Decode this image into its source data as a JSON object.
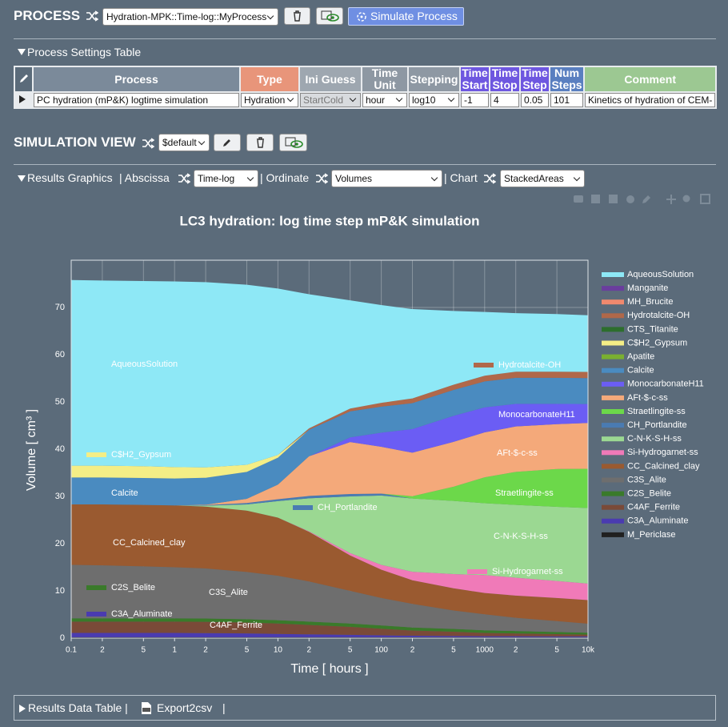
{
  "header": {
    "title": "PROCESS",
    "process_select": "Hydration-MPK::Time-log::MyProcess",
    "simulate_button": "Simulate Process"
  },
  "settings_table": {
    "title": "Process Settings Table",
    "columns": [
      "Process",
      "Type",
      "Ini Guess",
      "Time Unit",
      "Stepping",
      "Time Start",
      "Time Stop",
      "Time Step",
      "Num Steps",
      "Comment"
    ],
    "rows": [
      [
        "PC hydration (mP&K) logtime simulation",
        "Hydration",
        "StartCold",
        "hour",
        "log10",
        "-1",
        "4",
        "0.05",
        "101",
        "Kinetics of hydration of CEM-"
      ]
    ]
  },
  "view": {
    "title": "SIMULATION VIEW",
    "view_select": "$default",
    "results_graphics": "Results Graphics",
    "abscissa_label": "| Abscissa",
    "abscissa": "Time-log",
    "ordinate_label": "| Ordinate",
    "ordinate": "Volumes",
    "chart_label": "| Chart",
    "chart": "StackedAreas"
  },
  "chart_data": {
    "type": "stacked_area",
    "title": "LC3 hydration: log time step mP&K simulation",
    "x_label": "Time [ hours ]",
    "y_label": "Volume [ cm³ ]",
    "xscale": "log",
    "grid": true,
    "x": [
      0.1,
      0.2,
      0.5,
      1,
      2,
      5,
      10,
      20,
      50,
      100,
      200,
      500,
      1000,
      2000,
      5000,
      10000
    ],
    "xlim": [
      0.1,
      10000
    ],
    "xticks": [
      0.1,
      {
        "value": 0.2,
        "label": "2"
      },
      {
        "value": 0.5,
        "label": "5"
      },
      1,
      2,
      5,
      10,
      {
        "value": 20,
        "label": "2"
      },
      {
        "value": 50,
        "label": "5"
      },
      100,
      {
        "value": 200,
        "label": "2"
      },
      {
        "value": 500,
        "label": "5"
      },
      1000,
      {
        "value": 2000,
        "label": "2"
      },
      {
        "value": 5000,
        "label": "5"
      },
      {
        "value": 10000,
        "label": "10k"
      }
    ],
    "ylim": [
      0,
      80
    ],
    "yticks": [
      0,
      10,
      20,
      30,
      40,
      50,
      60,
      70
    ],
    "series": [
      {
        "name": "AqueousSolution",
        "color": "#8ee8f6",
        "values": [
          39.3,
          39.2,
          39.2,
          39.3,
          39.2,
          38.1,
          35.2,
          28.4,
          22.9,
          20.7,
          18.9,
          15.6,
          13.5,
          12.4,
          12.2,
          12.0
        ]
      },
      {
        "name": "Manganite",
        "color": "#6a3d9e",
        "values": [
          0,
          0,
          0,
          0,
          0,
          0,
          0,
          0,
          0,
          0,
          0,
          0,
          0,
          0,
          0,
          0
        ]
      },
      {
        "name": "MH_Brucite",
        "color": "#f0896e",
        "values": [
          0,
          0,
          0,
          0,
          0,
          0,
          0,
          0,
          0,
          0,
          0,
          0,
          0,
          0,
          0,
          0
        ]
      },
      {
        "name": "Hydrotalcite-OH",
        "color": "#b0684a",
        "values": [
          0,
          0,
          0,
          0,
          0,
          0,
          0,
          0.3,
          0.6,
          0.8,
          1.0,
          1.1,
          1.2,
          1.3,
          1.3,
          1.3
        ]
      },
      {
        "name": "CTS_Titanite",
        "color": "#2d6e2d",
        "values": [
          0,
          0,
          0,
          0,
          0,
          0,
          0,
          0,
          0,
          0,
          0,
          0,
          0,
          0,
          0,
          0
        ]
      },
      {
        "name": "C$H2_Gypsum",
        "color": "#f4ee86",
        "values": [
          2.5,
          2.5,
          2.5,
          2.4,
          2.2,
          1.5,
          0.6,
          0,
          0,
          0,
          0,
          0,
          0,
          0,
          0,
          0
        ]
      },
      {
        "name": "Apatite",
        "color": "#7ab030",
        "values": [
          0,
          0,
          0,
          0,
          0,
          0,
          0,
          0,
          0,
          0,
          0,
          0,
          0,
          0,
          0,
          0
        ]
      },
      {
        "name": "Calcite",
        "color": "#4a8bc0",
        "values": [
          5.7,
          5.7,
          5.7,
          5.7,
          5.7,
          5.7,
          5.7,
          5.6,
          5.5,
          5.5,
          5.5,
          5.5,
          5.5,
          5.5,
          5.5,
          5.5
        ]
      },
      {
        "name": "MonocarbonateH11",
        "color": "#6b5df4",
        "values": [
          0,
          0,
          0,
          0,
          0,
          0,
          0,
          0,
          1.0,
          3.0,
          5.0,
          5.5,
          5.3,
          4.8,
          4.3,
          4.0
        ]
      },
      {
        "name": "AFt-$-c-ss",
        "color": "#f4a97a",
        "values": [
          0,
          0,
          0,
          0,
          0.1,
          0.9,
          3.1,
          8.4,
          11.0,
          9.9,
          9.2,
          9.5,
          9.5,
          9.6,
          9.5,
          9.7
        ]
      },
      {
        "name": "Straetlingite-ss",
        "color": "#6cd84a",
        "values": [
          0,
          0,
          0,
          0,
          0,
          0,
          0,
          0,
          0,
          0,
          0.5,
          3.0,
          5.5,
          7.0,
          8.0,
          8.3
        ]
      },
      {
        "name": "CH_Portlandite",
        "color": "#4a7bb2",
        "values": [
          0,
          0,
          0,
          0,
          0.1,
          0.3,
          0.4,
          0.5,
          0.5,
          0.4,
          0,
          0,
          0,
          0,
          0,
          0
        ]
      },
      {
        "name": "C-N-K-S-H-ss",
        "color": "#9bd892",
        "values": [
          0,
          0,
          0,
          0,
          0.2,
          1.3,
          3.5,
          7.0,
          12.0,
          14.7,
          15.5,
          15.5,
          15.2,
          15.4,
          15.7,
          16.0
        ]
      },
      {
        "name": "Si-Hydrogarnet-ss",
        "color": "#f07ab8",
        "values": [
          0,
          0,
          0,
          0,
          0,
          0,
          0,
          0.1,
          0.5,
          1.0,
          1.8,
          3.0,
          3.8,
          3.8,
          3.6,
          3.5
        ]
      },
      {
        "name": "CC_Calcined_clay",
        "color": "#9a5a30",
        "values": [
          12.8,
          12.9,
          13.0,
          13.1,
          13.1,
          13.0,
          12.3,
          10.5,
          7.5,
          6.0,
          5.0,
          4.7,
          4.5,
          4.7,
          4.9,
          5.0
        ]
      },
      {
        "name": "C3S_Alite",
        "color": "#6e6e6e",
        "values": [
          11.3,
          11.2,
          11.0,
          10.8,
          10.6,
          10.0,
          9.4,
          8.5,
          6.9,
          5.8,
          5.0,
          3.9,
          3.4,
          2.8,
          2.3,
          1.9
        ]
      },
      {
        "name": "C2S_Belite",
        "color": "#3a7a2a",
        "values": [
          0.7,
          0.7,
          0.7,
          0.7,
          0.7,
          0.7,
          0.7,
          0.7,
          0.7,
          0.7,
          0.65,
          0.6,
          0.55,
          0.5,
          0.45,
          0.4
        ]
      },
      {
        "name": "C4AF_Ferrite",
        "color": "#7a4a38",
        "values": [
          2.4,
          2.4,
          2.4,
          2.4,
          2.4,
          2.3,
          2.2,
          2.0,
          1.7,
          1.4,
          1.1,
          0.9,
          0.7,
          0.6,
          0.5,
          0.4
        ]
      },
      {
        "name": "C3A_Aluminate",
        "color": "#4a3bb0",
        "values": [
          0.9,
          0.9,
          0.9,
          0.9,
          0.85,
          0.8,
          0.7,
          0.6,
          0.5,
          0.4,
          0.3,
          0.25,
          0.2,
          0.2,
          0.15,
          0.15
        ]
      },
      {
        "name": "M_Periclase",
        "color": "#202020",
        "values": [
          0.2,
          0.2,
          0.2,
          0.2,
          0.2,
          0.2,
          0.2,
          0.2,
          0.2,
          0.2,
          0.2,
          0.2,
          0.2,
          0.2,
          0.2,
          0.2
        ]
      }
    ]
  },
  "footer": {
    "results_table": "Results Data Table |",
    "export": "Export2csv",
    "separator": "|"
  }
}
